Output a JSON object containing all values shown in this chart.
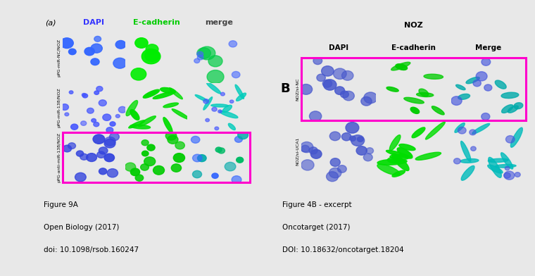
{
  "bg_color": "#e8e8e8",
  "left_panel": {
    "label": "(a)",
    "col_headers": [
      "DAPI",
      "E-cadherin",
      "merge"
    ],
    "col_header_colors": [
      "#3333ff",
      "#00cc00",
      "#444444"
    ],
    "row_labels": [
      "pPG-miR-NC/NOZ",
      "pPG-miR-138/NOZ",
      "pPG-anti-miR-138/NOZ"
    ],
    "highlight_row": 2,
    "highlight_color": "#ff00cc"
  },
  "right_panel": {
    "title": "NOZ",
    "label": "B",
    "col_headers": [
      "DAPI",
      "E-cadherin",
      "Merge"
    ],
    "row_labels": [
      "NOZ/si-NC",
      "NOZ/si-UCA1"
    ],
    "highlight_row": 0,
    "highlight_color": "#ff00cc"
  },
  "caption_left": [
    "Figure 9A",
    "Open Biology (2017)",
    "doi: 10.1098/rsob.160247"
  ],
  "caption_right": [
    "Figure 4B - excerpt",
    "Oncotarget (2017)",
    "DOI: 10.18632/oncotarget.18204"
  ]
}
